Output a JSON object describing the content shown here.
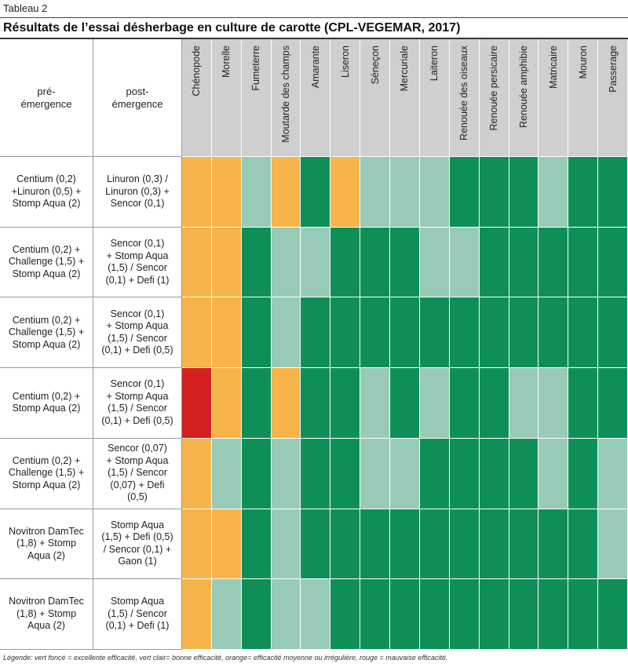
{
  "tableau_label": "Tableau 2",
  "title": "Résultats de l’essai désherbage en culture de carotte (CPL-VEGEMAR, 2017)",
  "headers": {
    "pre": "pré-\némergence",
    "post": "post-\némergence"
  },
  "weeds": [
    "Chénopode",
    "Morelle",
    "Fumeterre",
    "Moutarde des champs",
    "Amarante",
    "Liseron",
    "Séneçon",
    "Mercuriale",
    "Laiteron",
    "Renouée des oiseaux",
    "Renouée persicaire",
    "Renouée amphibie",
    "Matricaire",
    "Mouron",
    "Passerage"
  ],
  "colors": {
    "D": "#0e8f57",
    "L": "#97cbb7",
    "O": "#f6b44a",
    "R": "#d42020"
  },
  "rows": [
    {
      "pre": "Centium (0,2)\n+Linuron (0,5) +\nStomp Aqua (2)",
      "post": "Linuron (0,3) /\nLinuron (0,3) +\nSencor (0,1)",
      "ratings": [
        "O",
        "O",
        "L",
        "O",
        "D",
        "O",
        "L",
        "L",
        "L",
        "D",
        "D",
        "D",
        "L",
        "D",
        "D"
      ]
    },
    {
      "pre": "Centium (0,2) +\nChallenge (1,5) +\nStomp Aqua (2)",
      "post": "Sencor (0,1)\n+ Stomp Aqua\n(1,5) / Sencor\n(0,1) + Defi (1)",
      "ratings": [
        "O",
        "O",
        "D",
        "L",
        "L",
        "D",
        "D",
        "D",
        "L",
        "L",
        "D",
        "D",
        "D",
        "D",
        "D"
      ]
    },
    {
      "pre": "Centium (0,2) +\nChallenge (1,5) +\nStomp Aqua (2)",
      "post": "Sencor (0,1)\n+ Stomp Aqua\n(1,5) / Sencor\n(0,1) + Defi (0,5)",
      "ratings": [
        "O",
        "O",
        "D",
        "L",
        "D",
        "D",
        "D",
        "D",
        "D",
        "D",
        "D",
        "D",
        "D",
        "D",
        "D"
      ]
    },
    {
      "pre": "Centium (0,2) +\nStomp Aqua (2)",
      "post": "Sencor (0,1)\n+ Stomp Aqua\n(1,5) / Sencor\n(0,1) + Defi (0,5)",
      "ratings": [
        "R",
        "O",
        "D",
        "O",
        "D",
        "D",
        "L",
        "D",
        "L",
        "D",
        "D",
        "L",
        "L",
        "D",
        "D"
      ]
    },
    {
      "pre": "Centium (0,2) +\nChallenge (1,5) +\nStomp Aqua (2)",
      "post": "Sencor (0,07)\n+ Stomp Aqua\n(1,5) / Sencor\n(0,07) + Defi\n(0,5)",
      "ratings": [
        "O",
        "L",
        "D",
        "L",
        "D",
        "D",
        "L",
        "L",
        "D",
        "D",
        "D",
        "D",
        "L",
        "D",
        "L"
      ]
    },
    {
      "pre": "Novitron DamTec\n(1,8) + Stomp\nAqua (2)",
      "post": "Stomp Aqua\n(1,5) + Defi (0,5)\n/ Sencor (0,1) +\nGaon (1)",
      "ratings": [
        "O",
        "O",
        "D",
        "L",
        "D",
        "D",
        "D",
        "D",
        "D",
        "D",
        "D",
        "D",
        "D",
        "D",
        "L"
      ]
    },
    {
      "pre": "Novitron DamTec\n(1,8) + Stomp\nAqua (2)",
      "post": "Stomp Aqua\n(1,5) / Sencor\n(0,1) + Defi (1)",
      "ratings": [
        "O",
        "L",
        "D",
        "L",
        "L",
        "D",
        "D",
        "D",
        "D",
        "D",
        "D",
        "D",
        "D",
        "D",
        "D"
      ]
    }
  ],
  "legend": "Légende: vert foncé = excellente efficacité, vert clair= bonne efficacité, orange= efficacité moyenne ou irrégulière, rouge = mauvaise efficacité."
}
